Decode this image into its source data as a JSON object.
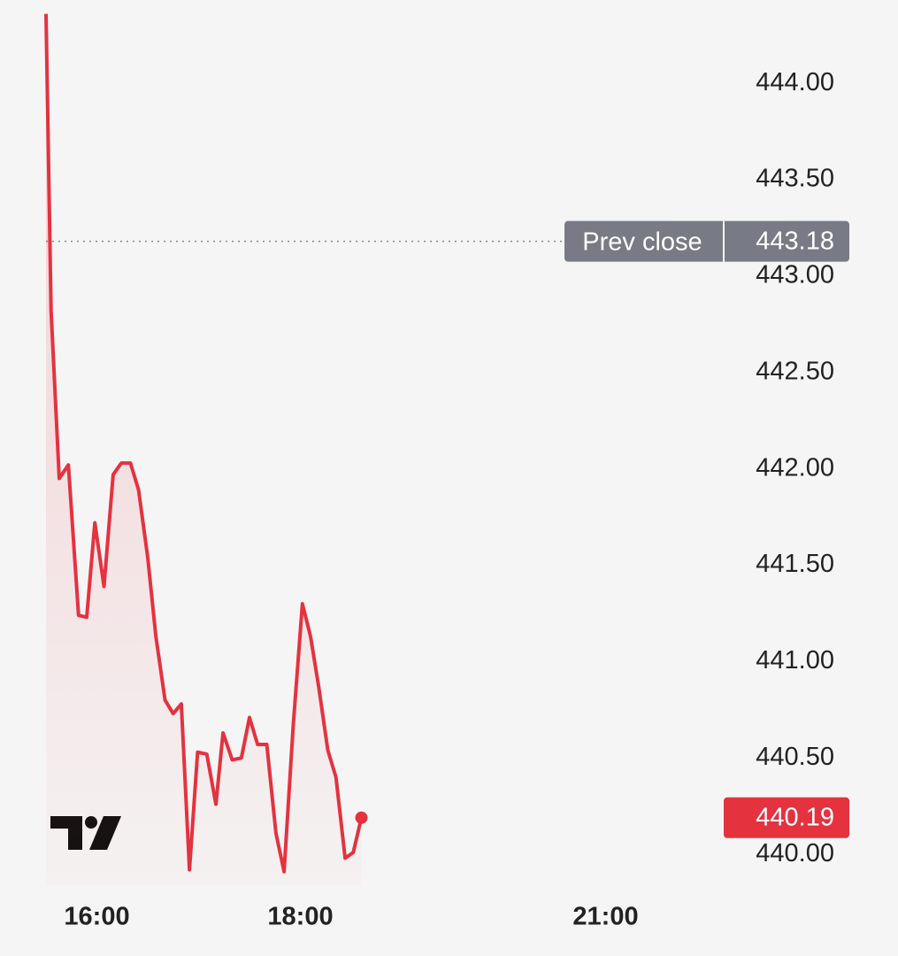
{
  "chart_data": {
    "type": "line",
    "color": "#e5323f",
    "x": [
      15.5,
      15.55,
      15.63,
      15.72,
      15.82,
      15.9,
      15.98,
      16.07,
      16.16,
      16.24,
      16.33,
      16.41,
      16.5,
      16.58,
      16.67,
      16.75,
      16.83,
      16.91,
      16.99,
      17.08,
      17.17,
      17.24,
      17.33,
      17.42,
      17.5,
      17.58,
      17.67,
      17.76,
      17.84,
      17.93,
      18.02,
      18.1,
      18.18,
      18.27,
      18.35,
      18.44,
      18.52,
      18.6
    ],
    "values": [
      444.36,
      442.82,
      441.95,
      442.02,
      441.24,
      441.23,
      441.72,
      441.39,
      441.97,
      442.03,
      442.03,
      441.89,
      441.54,
      441.13,
      440.8,
      440.73,
      440.78,
      439.92,
      440.53,
      440.52,
      440.26,
      440.63,
      440.49,
      440.5,
      440.71,
      440.57,
      440.57,
      440.11,
      439.91,
      440.67,
      441.3,
      441.13,
      440.87,
      440.54,
      440.4,
      439.98,
      440.01,
      440.19
    ],
    "xlim": [
      15.5,
      22
    ],
    "xticks": [
      {
        "value": 16,
        "label": "16:00"
      },
      {
        "value": 18,
        "label": "18:00"
      },
      {
        "value": 21,
        "label": "21:00"
      }
    ],
    "ylim": [
      439.84,
      444.4
    ],
    "yticks": [
      {
        "value": 440,
        "label": "440.00"
      },
      {
        "value": 440.5,
        "label": "440.50"
      },
      {
        "value": 441,
        "label": "441.00"
      },
      {
        "value": 441.5,
        "label": "441.50"
      },
      {
        "value": 442,
        "label": "442.00"
      },
      {
        "value": 442.5,
        "label": "442.50"
      },
      {
        "value": 443,
        "label": "443.00"
      },
      {
        "value": 443.5,
        "label": "443.50"
      },
      {
        "value": 444,
        "label": "444.00"
      }
    ],
    "prev_close": {
      "label": "Prev close",
      "value": 443.18
    }
  }
}
